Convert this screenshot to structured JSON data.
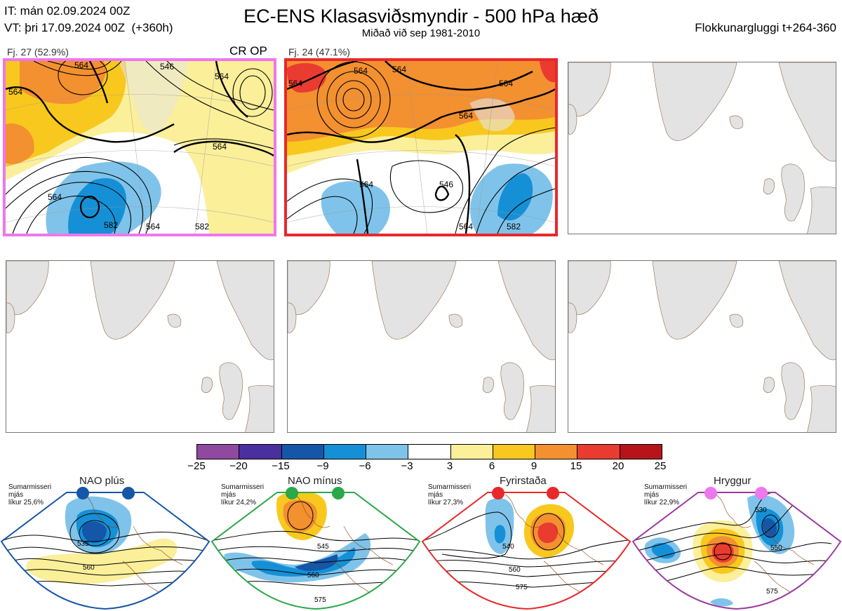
{
  "header": {
    "it_line": "IT: mán 02.09.2024 00Z",
    "vt_line": "VT: þri 17.09.2024 00Z  (+360h)",
    "title": "EC-ENS Klasasviðsmyndir - 500 hPa hæð",
    "subtitle": "Miðað við sep 1981-2010",
    "window": "Flokkunargluggi t+264-360"
  },
  "clusters": [
    {
      "label": "Fj. 27 (52.9%)",
      "tag": "CR OP",
      "border_color": "#ee77ee",
      "contours": [
        "546",
        "564",
        "564",
        "564",
        "564",
        "564",
        "564",
        "582",
        "582"
      ]
    },
    {
      "label": "Fj. 24 (47.1%)",
      "tag": "",
      "border_color": "#e8282b",
      "contours": [
        "564",
        "564",
        "564",
        "564",
        "564",
        "546",
        "564",
        "564",
        "582"
      ]
    }
  ],
  "colorbar": {
    "ticks": [
      "−25",
      "−20",
      "−15",
      "−9",
      "−6",
      "−3",
      "3",
      "6",
      "9",
      "15",
      "20",
      "25"
    ],
    "colors": [
      "#8f4aa0",
      "#4a2f9e",
      "#1556a8",
      "#1590d6",
      "#7fc3ea",
      "#ffffff",
      "#fbef9a",
      "#f8c81e",
      "#f39030",
      "#ea3b30",
      "#b5141a"
    ]
  },
  "regimes": [
    {
      "name": "NAO plús",
      "season": "Sumarmisseri",
      "mean": "mjás",
      "prob": "líkur 25,6%",
      "color": "#1556a8",
      "labels": [
        "535",
        "560"
      ]
    },
    {
      "name": "NAO mínus",
      "season": "Sumarmisseri",
      "mean": "mjás",
      "prob": "líkur 24,2%",
      "color": "#2aa84a",
      "labels": [
        "545",
        "560",
        "575"
      ]
    },
    {
      "name": "Fyrirstaða",
      "season": "Sumarmisseri",
      "mean": "mjás",
      "prob": "líkur 27,3%",
      "color": "#e8282b",
      "labels": [
        "540",
        "560",
        "575"
      ]
    },
    {
      "name": "Hryggur",
      "season": "Sumarmisseri",
      "mean": "mjás",
      "prob": "líkur 22,9%",
      "color": "#9a3aa0",
      "labels": [
        "530",
        "550",
        "575"
      ]
    }
  ]
}
